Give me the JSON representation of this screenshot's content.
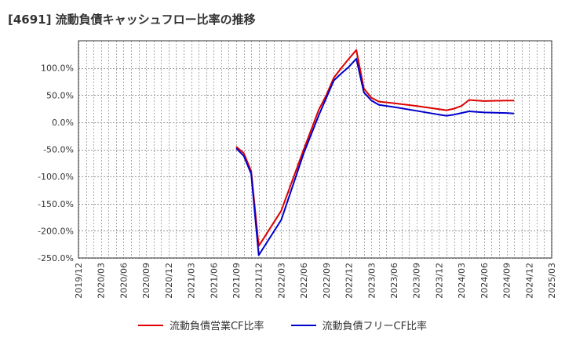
{
  "chart_data": {
    "type": "line",
    "title": "[4691]  流動負債キャッシュフロー比率の推移",
    "xlabel": "",
    "ylabel": "",
    "ylim": [
      -250,
      150
    ],
    "yticks": [
      -250,
      -200,
      -150,
      -100,
      -50,
      0,
      50,
      100
    ],
    "ytick_labels": [
      "-250.0%",
      "-200.0%",
      "-150.0%",
      "-100.0%",
      "-50.0%",
      "0.0%",
      "50.0%",
      "100.0%"
    ],
    "x_start": "2019/12",
    "x_end": "2025/03",
    "x_ticks": [
      "2019/12",
      "2020/03",
      "2020/06",
      "2020/09",
      "2020/12",
      "2021/03",
      "2021/06",
      "2021/09",
      "2021/12",
      "2022/03",
      "2022/06",
      "2022/09",
      "2022/12",
      "2023/03",
      "2023/06",
      "2023/09",
      "2023/12",
      "2024/03",
      "2024/06",
      "2024/09",
      "2024/12",
      "2025/03"
    ],
    "grid": true,
    "legend_position": "bottom",
    "series": [
      {
        "name": "流動負債営業CF比率",
        "color": "#dd0000",
        "points": [
          [
            "2021/09",
            -45
          ],
          [
            "2021/10",
            -57
          ],
          [
            "2021/11",
            -90
          ],
          [
            "2021/12",
            -228
          ],
          [
            "2022/03",
            -163
          ],
          [
            "2022/06",
            -50
          ],
          [
            "2022/08",
            23
          ],
          [
            "2022/09",
            50
          ],
          [
            "2022/10",
            82
          ],
          [
            "2022/11",
            100
          ],
          [
            "2022/12",
            117
          ],
          [
            "2023/01",
            133
          ],
          [
            "2023/02",
            62
          ],
          [
            "2023/03",
            45
          ],
          [
            "2023/04",
            38
          ],
          [
            "2023/06",
            35
          ],
          [
            "2023/09",
            30
          ],
          [
            "2023/12",
            24
          ],
          [
            "2024/01",
            22
          ],
          [
            "2024/02",
            25
          ],
          [
            "2024/03",
            30
          ],
          [
            "2024/04",
            41
          ],
          [
            "2024/06",
            39
          ],
          [
            "2024/09",
            40
          ],
          [
            "2024/10",
            40
          ]
        ]
      },
      {
        "name": "流動負債フリーCF比率",
        "color": "#0000cc",
        "points": [
          [
            "2021/09",
            -48
          ],
          [
            "2021/10",
            -62
          ],
          [
            "2021/11",
            -95
          ],
          [
            "2021/12",
            -245
          ],
          [
            "2022/03",
            -180
          ],
          [
            "2022/06",
            -57
          ],
          [
            "2022/08",
            13
          ],
          [
            "2022/09",
            45
          ],
          [
            "2022/10",
            77
          ],
          [
            "2022/11",
            90
          ],
          [
            "2022/12",
            102
          ],
          [
            "2023/01",
            117
          ],
          [
            "2023/02",
            55
          ],
          [
            "2023/03",
            40
          ],
          [
            "2023/04",
            32
          ],
          [
            "2023/06",
            28
          ],
          [
            "2023/09",
            21
          ],
          [
            "2023/12",
            14
          ],
          [
            "2024/01",
            12
          ],
          [
            "2024/02",
            14
          ],
          [
            "2024/03",
            17
          ],
          [
            "2024/04",
            20
          ],
          [
            "2024/06",
            18
          ],
          [
            "2024/09",
            17
          ],
          [
            "2024/10",
            16
          ]
        ]
      }
    ]
  }
}
